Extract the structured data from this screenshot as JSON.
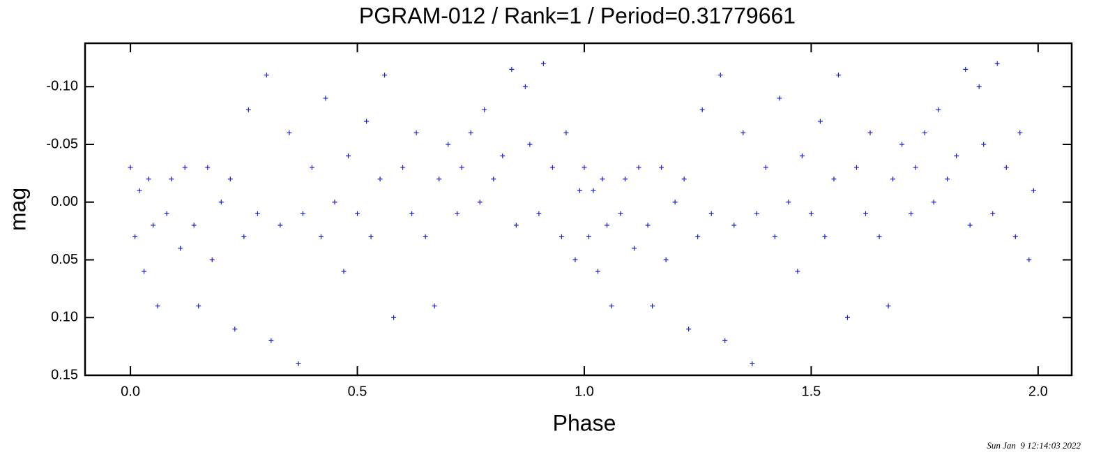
{
  "chart_data": {
    "type": "scatter",
    "title": "PGRAM-012 / Rank=1 / Period=0.31779661",
    "xlabel": "Phase",
    "ylabel": "mag",
    "footer": "Sun Jan  9 12:14:03 2022",
    "color": "#1c1cd0",
    "xlim": [
      -0.1,
      2.074
    ],
    "ylim": [
      0.15,
      -0.1376
    ],
    "xticks": [
      {
        "value": 0,
        "label": "0.0"
      },
      0.5,
      {
        "value": 1,
        "label": "1.0"
      },
      1.5,
      {
        "value": 2,
        "label": "2.0"
      }
    ],
    "yticks": [
      {
        "value": -0.1,
        "label": "-0.10"
      },
      {
        "value": -0.05,
        "label": "-0.05"
      },
      {
        "value": 0,
        "label": "0.00"
      },
      {
        "value": 0.05,
        "label": "0.05"
      },
      {
        "value": 0.1,
        "label": "0.10"
      },
      {
        "value": 0.15,
        "label": "0.15"
      }
    ],
    "grid": false,
    "x": [
      0.0,
      0.01,
      0.02,
      0.03,
      0.04,
      0.05,
      0.06,
      0.08,
      0.09,
      0.11,
      0.12,
      0.14,
      0.15,
      0.17,
      0.18,
      0.2,
      0.22,
      0.23,
      0.25,
      0.26,
      0.28,
      0.3,
      0.31,
      0.33,
      0.35,
      0.37,
      0.38,
      0.4,
      0.42,
      0.43,
      0.45,
      0.47,
      0.48,
      0.5,
      0.52,
      0.53,
      0.55,
      0.56,
      0.58,
      0.6,
      0.62,
      0.63,
      0.65,
      0.67,
      0.68,
      0.7,
      0.72,
      0.73,
      0.75,
      0.77,
      0.78,
      0.8,
      0.82,
      0.84,
      0.85,
      0.87,
      0.88,
      0.9,
      0.91,
      0.93,
      0.95,
      0.96,
      0.98,
      0.99,
      1.0,
      1.01,
      1.02,
      1.03,
      1.04,
      1.05,
      1.06,
      1.08,
      1.09,
      1.11,
      1.12,
      1.14,
      1.15,
      1.17,
      1.18,
      1.2,
      1.22,
      1.23,
      1.25,
      1.26,
      1.28,
      1.3,
      1.31,
      1.33,
      1.35,
      1.37,
      1.38,
      1.4,
      1.42,
      1.43,
      1.45,
      1.47,
      1.48,
      1.5,
      1.52,
      1.53,
      1.55,
      1.56,
      1.58,
      1.6,
      1.62,
      1.63,
      1.65,
      1.67,
      1.68,
      1.7,
      1.72,
      1.73,
      1.75,
      1.77,
      1.78,
      1.8,
      1.82,
      1.84,
      1.85,
      1.87,
      1.88,
      1.9,
      1.91,
      1.93,
      1.95,
      1.96,
      1.98,
      1.99
    ],
    "values": [
      -0.03,
      0.03,
      -0.01,
      0.06,
      -0.02,
      0.02,
      0.09,
      0.01,
      -0.02,
      0.04,
      -0.03,
      0.02,
      0.09,
      -0.03,
      0.05,
      0.0,
      -0.02,
      0.11,
      0.03,
      -0.08,
      0.01,
      -0.11,
      0.12,
      0.02,
      -0.06,
      0.14,
      0.01,
      -0.03,
      0.03,
      -0.09,
      0.0,
      0.06,
      -0.04,
      0.01,
      -0.07,
      0.03,
      -0.02,
      -0.11,
      0.1,
      -0.03,
      0.01,
      -0.06,
      0.03,
      0.09,
      -0.02,
      -0.05,
      0.01,
      -0.03,
      -0.06,
      0.0,
      -0.08,
      -0.02,
      -0.04,
      -0.115,
      0.02,
      -0.1,
      -0.05,
      0.01,
      -0.12,
      -0.03,
      0.03,
      -0.06,
      0.05,
      -0.01,
      -0.03,
      0.03,
      -0.01,
      0.06,
      -0.02,
      0.02,
      0.09,
      0.01,
      -0.02,
      0.04,
      -0.03,
      0.02,
      0.09,
      -0.03,
      0.05,
      0.0,
      -0.02,
      0.11,
      0.03,
      -0.08,
      0.01,
      -0.11,
      0.12,
      0.02,
      -0.06,
      0.14,
      0.01,
      -0.03,
      0.03,
      -0.09,
      0.0,
      0.06,
      -0.04,
      0.01,
      -0.07,
      0.03,
      -0.02,
      -0.11,
      0.1,
      -0.03,
      0.01,
      -0.06,
      0.03,
      0.09,
      -0.02,
      -0.05,
      0.01,
      -0.03,
      -0.06,
      0.0,
      -0.08,
      -0.02,
      -0.04,
      -0.115,
      0.02,
      -0.1,
      -0.05,
      0.01,
      -0.12,
      -0.03,
      0.03,
      -0.06,
      0.05,
      -0.01
    ]
  }
}
